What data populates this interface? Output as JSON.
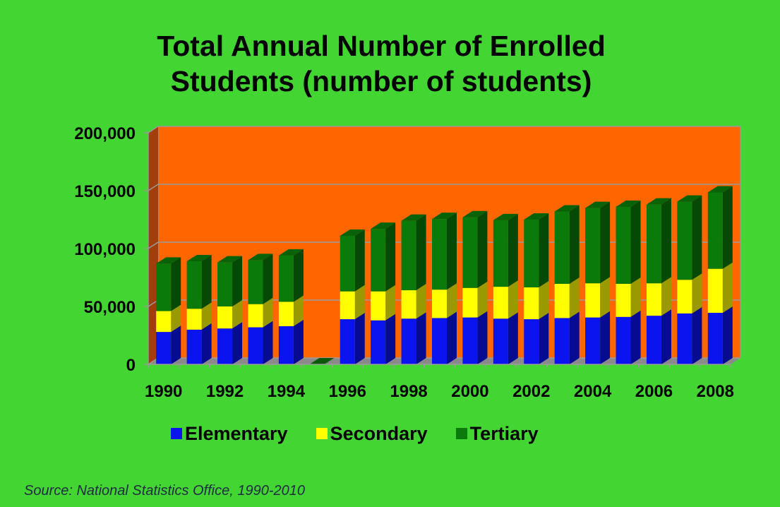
{
  "title_lines": [
    "Total Annual Number of Enrolled",
    "Students (number of students)"
  ],
  "source": "Source: National Statistics Office, 1990-2010",
  "colors": {
    "background": "#43d633",
    "plot_area": "#ff6600",
    "plot_side": "#a43d0c",
    "Elementary": "#0a14ee",
    "Secondary": "#ffff00",
    "Tertiary": "#0a7a0a"
  },
  "chart_data": {
    "type": "bar",
    "stacked": true,
    "three_d": true,
    "categories": [
      "1990",
      "1991",
      "1992",
      "1993",
      "1994",
      "1995",
      "1996",
      "1997",
      "1998",
      "1999",
      "2000",
      "2001",
      "2002",
      "2003",
      "2004",
      "2005",
      "2006",
      "2007",
      "2008"
    ],
    "x_tick_labels": [
      "1990",
      "1992",
      "1994",
      "1996",
      "1998",
      "2000",
      "2002",
      "2004",
      "2006",
      "2008"
    ],
    "series": [
      {
        "name": "Elementary",
        "values": [
          28000,
          30000,
          31000,
          32000,
          33000,
          0,
          39000,
          38000,
          39500,
          40000,
          40500,
          39500,
          39000,
          40000,
          40500,
          41000,
          42000,
          44000,
          44500
        ]
      },
      {
        "name": "Secondary",
        "values": [
          18000,
          18000,
          19000,
          20000,
          21000,
          0,
          24000,
          25000,
          24500,
          24500,
          25500,
          27500,
          27500,
          29500,
          29500,
          28500,
          28000,
          29000,
          38000
        ]
      },
      {
        "name": "Tertiary",
        "values": [
          41000,
          41000,
          38000,
          38000,
          40000,
          0,
          48000,
          54000,
          60000,
          61000,
          61000,
          57500,
          58500,
          62500,
          65000,
          66500,
          68000,
          67500,
          66000
        ]
      }
    ],
    "y_ticks": [
      "0",
      "50,000",
      "100,000",
      "150,000",
      "200,000"
    ],
    "ylim": [
      0,
      200000
    ],
    "grid": true,
    "legend": "bottom"
  }
}
